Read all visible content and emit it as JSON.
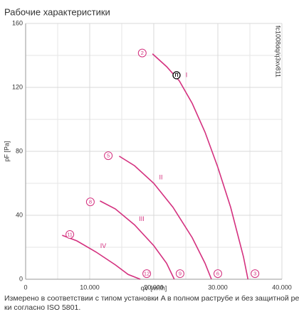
{
  "chart_data": {
    "type": "line",
    "title": "Рабочие характеристики",
    "xlabel": "qV [m³/h]",
    "ylabel": "pF [Pa]",
    "code": "fc1008dq/q3xv811",
    "note": [
      "Измерено в соответствии с типом установки A в полном раструбе и без защитной решет-",
      "ки согласно ISO 5801."
    ],
    "xlim": [
      0,
      40000
    ],
    "ylim": [
      0,
      160
    ],
    "xticks": [
      0,
      {
        "value": 10000,
        "label": "10.000"
      },
      {
        "value": 20000,
        "label": "20.000"
      },
      {
        "value": 30000,
        "label": "30.000"
      },
      {
        "value": 40000,
        "label": "40.000"
      }
    ],
    "yticks": [
      0,
      40,
      80,
      120,
      160
    ],
    "grid": true,
    "color": "#d4317f",
    "series": [
      {
        "name": "I",
        "x": [
          19800,
          22000,
          24000,
          26000,
          28000,
          30000,
          32000,
          34000,
          34700
        ],
        "values": [
          141,
          133,
          124,
          110,
          92,
          70,
          45,
          14,
          0
        ]
      },
      {
        "name": "II",
        "x": [
          14600,
          17000,
          20000,
          23000,
          26000,
          28000,
          29000
        ],
        "values": [
          77,
          71,
          60,
          45,
          26,
          10,
          0
        ]
      },
      {
        "name": "III",
        "x": [
          11600,
          14000,
          17000,
          20000,
          22000,
          23200
        ],
        "values": [
          49,
          44,
          34,
          21,
          10,
          0
        ]
      },
      {
        "name": "IV",
        "x": [
          5700,
          8000,
          11000,
          14000,
          16000,
          17900
        ],
        "values": [
          27.5,
          24,
          17,
          9,
          3,
          0
        ]
      }
    ],
    "annotations": [
      {
        "text": "2",
        "x": 18200,
        "y": 141.5
      },
      {
        "text": "5",
        "x": 12900,
        "y": 77.3
      },
      {
        "text": "8",
        "x": 10100,
        "y": 48.4
      },
      {
        "text": "11",
        "x": 6900,
        "y": 28
      },
      {
        "text": "12",
        "x": 18900,
        "y": 3.5
      },
      {
        "text": "9",
        "x": 24100,
        "y": 3.5
      },
      {
        "text": "6",
        "x": 30000,
        "y": 3.5
      },
      {
        "text": "3",
        "x": 35800,
        "y": 3.5
      }
    ],
    "operating_point": {
      "text": "П",
      "x": 23556,
      "y": 127.6
    }
  }
}
